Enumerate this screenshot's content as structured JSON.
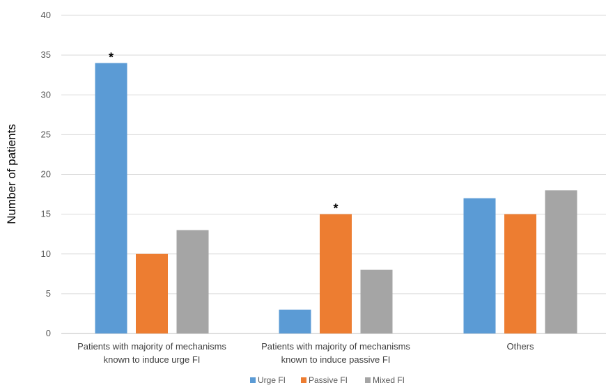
{
  "chart_data": {
    "type": "bar",
    "ylabel": "Number of patients",
    "ylim": [
      0,
      40
    ],
    "yticks": [
      0,
      5,
      10,
      15,
      20,
      25,
      30,
      35,
      40
    ],
    "grid": true,
    "legend_position": "bottom",
    "categories": [
      [
        "Patients with majority of mechanisms",
        "known to induce urge FI"
      ],
      [
        "Patients with majority of mechanisms",
        "known to induce passive FI"
      ],
      [
        "Others"
      ]
    ],
    "series": [
      {
        "name": "Urge FI",
        "color": "#5B9BD5",
        "values": [
          34,
          3,
          17
        ]
      },
      {
        "name": "Passive FI",
        "color": "#ED7D31",
        "values": [
          10,
          15,
          15
        ]
      },
      {
        "name": "Mixed FI",
        "color": "#A5A5A5",
        "values": [
          13,
          8,
          18
        ]
      }
    ],
    "annotations": [
      {
        "text": "*",
        "category_index": 0,
        "series_index": 0
      },
      {
        "text": "*",
        "category_index": 1,
        "series_index": 1
      }
    ]
  }
}
